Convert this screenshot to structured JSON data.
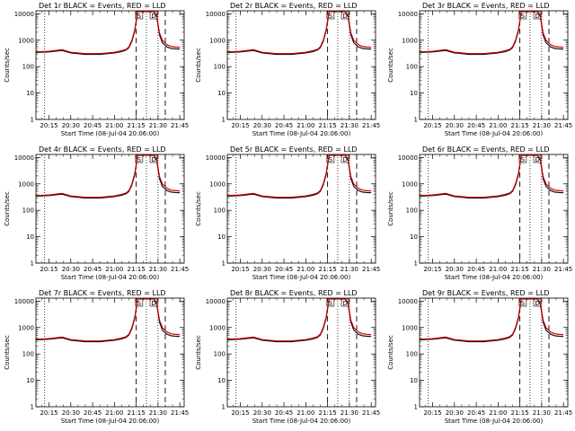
{
  "panel_titles": [
    "Det 1r BLACK = Events, RED = LLD",
    "Det 2r BLACK = Events, RED = LLD",
    "Det 3r BLACK = Events, RED = LLD",
    "Det 4r BLACK = Events, RED = LLD",
    "Det 5r BLACK = Events, RED = LLD",
    "Det 6r BLACK = Events, RED = LLD",
    "Det 7r BLACK = Events, RED = LLD",
    "Det 8r BLACK = Events, RED = LLD",
    "Det 9r BLACK = Events, RED = LLD"
  ],
  "ylabel": "Counts/sec",
  "xlabel": "Start Time (08-Jul-04 20:06:00)",
  "x_tick_labels": [
    "20:15",
    "20:30",
    "20:45",
    "21:00",
    "21:15",
    "21:30",
    "21:45"
  ],
  "y_tick_labels": [
    "1",
    "10",
    "100",
    "1000",
    "10000"
  ],
  "markers": [
    "S",
    "D"
  ],
  "colors": {
    "events": "#000000",
    "lld": "#cc0000"
  },
  "chart_data": {
    "type": "line",
    "yscale": "log",
    "xlim": [
      "20:06",
      "21:48"
    ],
    "ylim": [
      1,
      13000
    ],
    "x_ticks": [
      "20:15",
      "20:30",
      "20:45",
      "21:00",
      "21:15",
      "21:30",
      "21:45"
    ],
    "y_ticks": [
      1,
      10,
      100,
      1000,
      10000
    ],
    "vertical_lines": {
      "dotted": [
        "20:12",
        "21:22",
        "21:30"
      ],
      "dashed": [
        "21:15",
        "21:35"
      ]
    },
    "annotations": [
      {
        "text": "S",
        "x": "21:17"
      },
      {
        "text": "D",
        "x": "21:27"
      }
    ],
    "series_time": [
      "20:06",
      "20:15",
      "20:24",
      "20:30",
      "20:40",
      "20:50",
      "21:00",
      "21:05",
      "21:08",
      "21:10",
      "21:12",
      "21:14",
      "21:16",
      "21:18",
      "21:27",
      "21:29",
      "21:31",
      "21:33",
      "21:36",
      "21:39",
      "21:42",
      "21:45"
    ],
    "panels": [
      {
        "detector": "1r",
        "series": [
          {
            "name": "BLACK = Events",
            "values": [
              340,
              360,
              410,
              330,
              290,
              290,
              330,
              370,
              420,
              520,
              900,
              2200,
              12000,
              12000,
              12000,
              8000,
              1600,
              800,
              560,
              490,
              470,
              460
            ]
          },
          {
            "name": "RED = LLD",
            "values": [
              360,
              380,
              440,
              350,
              310,
              310,
              350,
              400,
              450,
              560,
              1000,
              2500,
              12000,
              12000,
              12000,
              9000,
              1900,
              1000,
              680,
              580,
              550,
              540
            ]
          }
        ]
      },
      {
        "detector": "2r",
        "series": [
          {
            "name": "BLACK = Events",
            "values": [
              340,
              360,
              410,
              330,
              290,
              290,
              330,
              370,
              420,
              520,
              900,
              2200,
              12000,
              12000,
              12000,
              8000,
              1600,
              800,
              560,
              490,
              470,
              460
            ]
          },
          {
            "name": "RED = LLD",
            "values": [
              360,
              380,
              440,
              350,
              310,
              310,
              350,
              400,
              450,
              560,
              1000,
              2500,
              12000,
              12000,
              12000,
              9000,
              1900,
              1000,
              680,
              580,
              550,
              540
            ]
          }
        ]
      },
      {
        "detector": "3r",
        "series": [
          {
            "name": "BLACK = Events",
            "values": [
              340,
              360,
              410,
              330,
              290,
              290,
              330,
              370,
              420,
              520,
              900,
              2200,
              12000,
              12000,
              12000,
              8000,
              1600,
              800,
              560,
              490,
              470,
              460
            ]
          },
          {
            "name": "RED = LLD",
            "values": [
              360,
              380,
              440,
              350,
              310,
              310,
              350,
              400,
              450,
              560,
              1000,
              2500,
              12000,
              12000,
              12000,
              9000,
              1900,
              1000,
              680,
              580,
              550,
              540
            ]
          }
        ]
      },
      {
        "detector": "4r",
        "series": [
          {
            "name": "BLACK = Events",
            "values": [
              340,
              360,
              410,
              330,
              290,
              290,
              330,
              370,
              420,
              520,
              900,
              2200,
              12000,
              12000,
              12000,
              8000,
              1600,
              800,
              560,
              490,
              470,
              460
            ]
          },
          {
            "name": "RED = LLD",
            "values": [
              360,
              380,
              440,
              350,
              310,
              310,
              350,
              400,
              450,
              560,
              1000,
              2500,
              12000,
              12000,
              12000,
              9000,
              1900,
              1000,
              680,
              580,
              550,
              540
            ]
          }
        ]
      },
      {
        "detector": "5r",
        "series": [
          {
            "name": "BLACK = Events",
            "values": [
              340,
              360,
              410,
              330,
              290,
              290,
              330,
              370,
              420,
              520,
              900,
              2200,
              12000,
              12000,
              12000,
              8000,
              1600,
              800,
              560,
              490,
              470,
              460
            ]
          },
          {
            "name": "RED = LLD",
            "values": [
              360,
              380,
              440,
              350,
              310,
              310,
              350,
              400,
              450,
              560,
              1000,
              2500,
              12000,
              12000,
              12000,
              9000,
              1900,
              1000,
              680,
              580,
              550,
              540
            ]
          }
        ]
      },
      {
        "detector": "6r",
        "series": [
          {
            "name": "BLACK = Events",
            "values": [
              340,
              360,
              410,
              330,
              290,
              290,
              330,
              370,
              420,
              520,
              900,
              2200,
              12000,
              12000,
              12000,
              8000,
              1600,
              800,
              560,
              490,
              470,
              460
            ]
          },
          {
            "name": "RED = LLD",
            "values": [
              360,
              380,
              440,
              350,
              310,
              310,
              350,
              400,
              450,
              560,
              1000,
              2500,
              12000,
              12000,
              12000,
              9000,
              1900,
              1000,
              680,
              580,
              550,
              540
            ]
          }
        ]
      },
      {
        "detector": "7r",
        "series": [
          {
            "name": "BLACK = Events",
            "values": [
              340,
              360,
              410,
              330,
              290,
              290,
              330,
              370,
              420,
              520,
              900,
              2200,
              12000,
              12000,
              12000,
              8000,
              1600,
              800,
              560,
              490,
              470,
              460
            ]
          },
          {
            "name": "RED = LLD",
            "values": [
              360,
              380,
              440,
              350,
              310,
              310,
              350,
              400,
              450,
              560,
              1000,
              2500,
              12000,
              12000,
              12000,
              9000,
              1900,
              1000,
              680,
              580,
              550,
              540
            ]
          }
        ]
      },
      {
        "detector": "8r",
        "series": [
          {
            "name": "BLACK = Events",
            "values": [
              340,
              360,
              410,
              330,
              290,
              290,
              330,
              370,
              420,
              520,
              900,
              2200,
              12000,
              12000,
              12000,
              8000,
              1600,
              800,
              560,
              490,
              470,
              460
            ]
          },
          {
            "name": "RED = LLD",
            "values": [
              360,
              380,
              440,
              350,
              310,
              310,
              350,
              400,
              450,
              560,
              1000,
              2500,
              12000,
              12000,
              12000,
              9000,
              1900,
              1000,
              680,
              580,
              550,
              540
            ]
          }
        ]
      },
      {
        "detector": "9r",
        "series": [
          {
            "name": "BLACK = Events",
            "values": [
              340,
              360,
              410,
              330,
              290,
              290,
              330,
              370,
              420,
              520,
              900,
              2200,
              12000,
              12000,
              12000,
              8000,
              1600,
              800,
              560,
              490,
              470,
              460
            ]
          },
          {
            "name": "RED = LLD",
            "values": [
              360,
              380,
              440,
              350,
              310,
              310,
              350,
              400,
              450,
              560,
              1000,
              2500,
              12000,
              12000,
              12000,
              9000,
              1900,
              1000,
              680,
              580,
              550,
              540
            ]
          }
        ]
      }
    ]
  }
}
